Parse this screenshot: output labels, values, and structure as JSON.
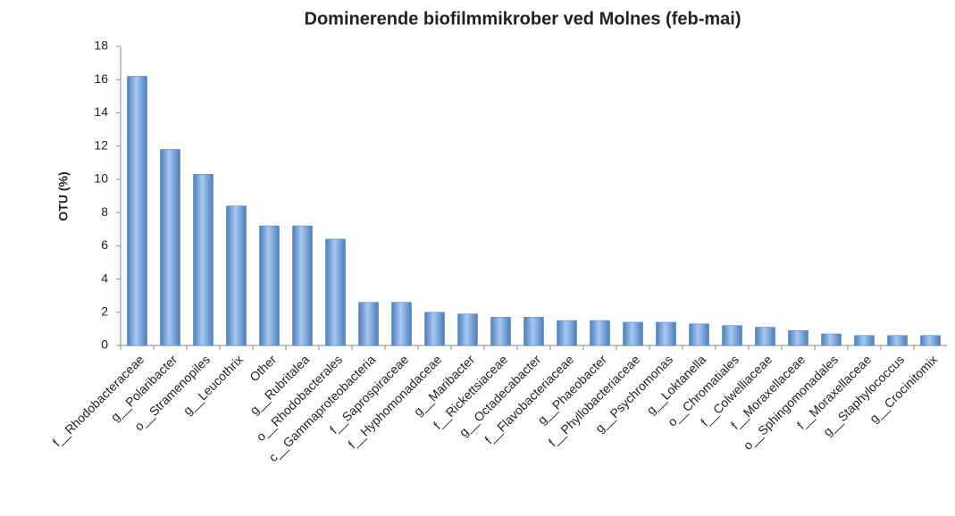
{
  "chart_data": {
    "type": "bar",
    "title": "Dominerende biofilmmikrober ved Molnes (feb-mai)",
    "y_label": "OTU (%)",
    "categories": [
      "f__Rhodobacteraceae",
      "g__Polaribacter",
      "o__Stramenopiles",
      "g__Leucothrix",
      "Other",
      "g__Rubritalea",
      "o__Rhodobacterales",
      "c__Gammaproteobacteria",
      "f__Saprospiraceae",
      "f__Hyphomonadaceae",
      "g__Maribacter",
      "f__Rickettsiaceae",
      "g__Octadecabacter",
      "f__Flavobacteriaceae",
      "g__Phaeobacter",
      "f__Phyllobacteriaceae",
      "g__Psychromonas",
      "g__Loktanella",
      "o__Chromatiales",
      "f__Colwelliaceae",
      "f__Moraxellaceae",
      "o__Sphingomonadales",
      "f__Moraxellaceae",
      "g__Staphylococcus",
      "g__Crocinitomix"
    ],
    "values": [
      16.2,
      11.8,
      10.3,
      8.4,
      7.2,
      7.2,
      6.4,
      2.6,
      2.6,
      2.0,
      1.9,
      1.7,
      1.7,
      1.5,
      1.5,
      1.4,
      1.4,
      1.3,
      1.2,
      1.1,
      0.9,
      0.7,
      0.6,
      0.6,
      0.6
    ],
    "color": "#4a7ebb",
    "ylim": [
      0,
      18
    ],
    "yticks": [
      0,
      2,
      4,
      6,
      8,
      10,
      12,
      14,
      16,
      18
    ],
    "grid": false
  }
}
